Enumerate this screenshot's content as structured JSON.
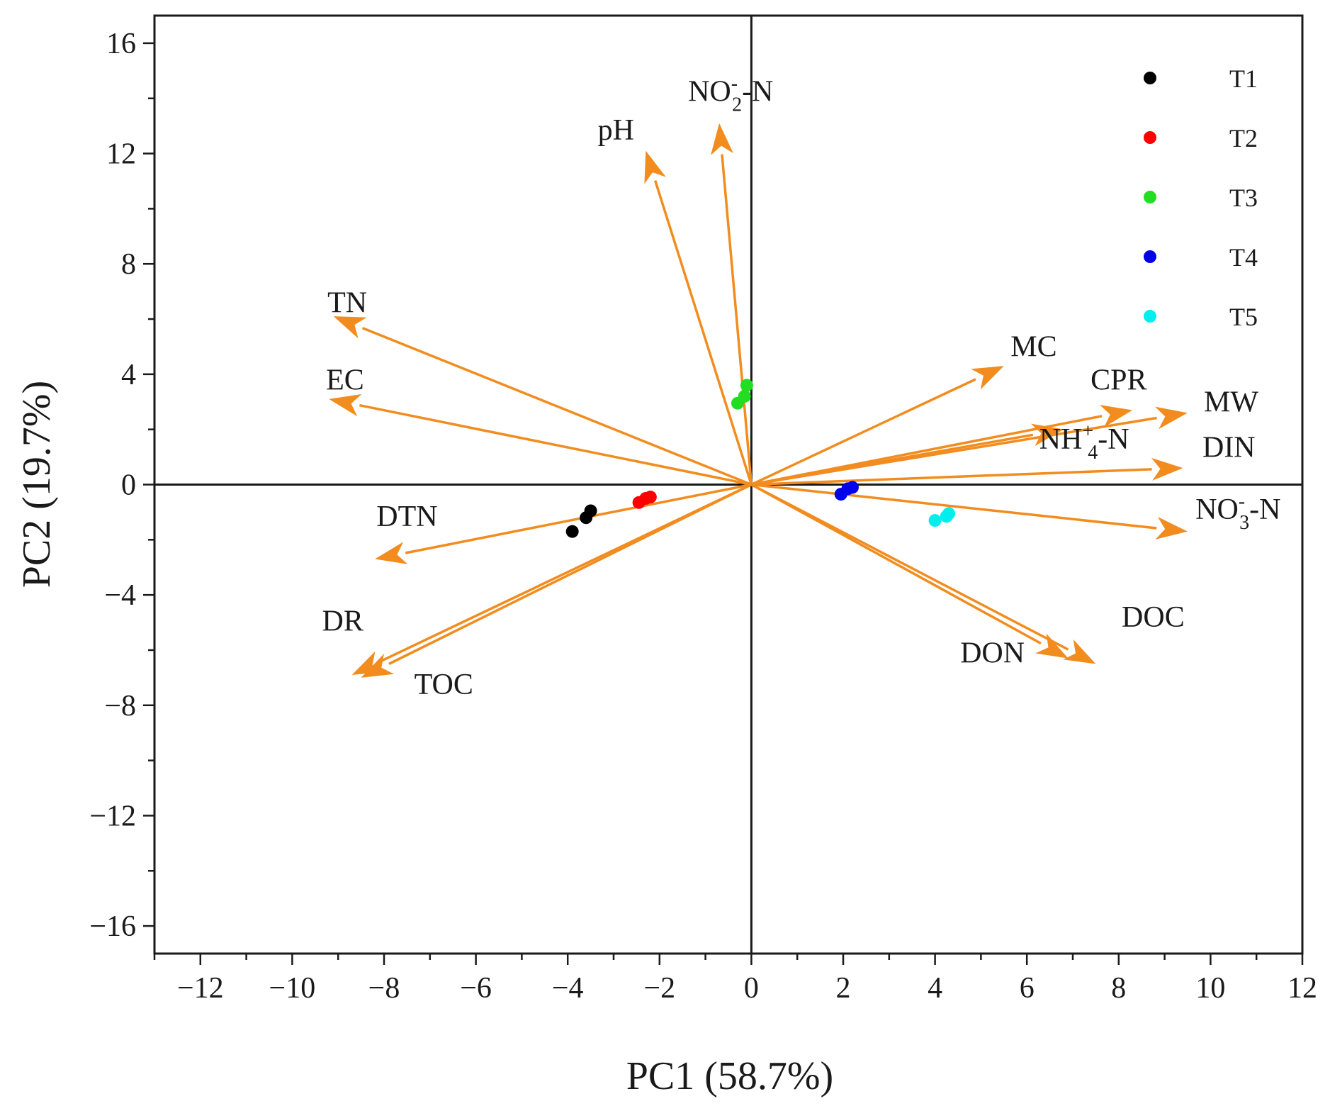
{
  "chart_data": {
    "type": "scatter",
    "subtype": "pca-biplot",
    "xlabel": "PC1 (58.7%)",
    "ylabel": "PC2 (19.7%)",
    "xlim": [
      -13,
      12
    ],
    "ylim": [
      -17,
      17
    ],
    "x_ticks": [
      -12,
      -10,
      -8,
      -6,
      -4,
      -2,
      0,
      2,
      4,
      6,
      8,
      10,
      12
    ],
    "x_tick_labels": [
      "−12",
      "−10",
      "−8",
      "−6",
      "−4",
      "−2",
      "0",
      "2",
      "4",
      "6",
      "8",
      "10",
      "12"
    ],
    "y_ticks": [
      16,
      12,
      8,
      4,
      0,
      -4,
      -8,
      -12,
      -16
    ],
    "y_tick_labels": [
      "16",
      "12",
      "8",
      "4",
      "0",
      "−4",
      "−8",
      "−12",
      "−16"
    ],
    "colors": {
      "arrow": "#F28C1E",
      "axis": "#1a1a1a",
      "T1": "#000000",
      "T2": "#FF0000",
      "T3": "#22DD22",
      "T4": "#0000EE",
      "T5": "#00EEEE"
    },
    "loadings": [
      {
        "name": "pH",
        "x": -2.3,
        "y": 12.1,
        "label": {
          "main": "pH"
        }
      },
      {
        "name": "NO2-N",
        "x": -0.7,
        "y": 13.1,
        "label": {
          "main": "NO",
          "sub": "2",
          "sup": "-",
          "suffix": "-N"
        }
      },
      {
        "name": "TN",
        "x": -9.1,
        "y": 6.1,
        "label": {
          "main": "TN"
        }
      },
      {
        "name": "EC",
        "x": -9.2,
        "y": 3.1,
        "label": {
          "main": "EC"
        }
      },
      {
        "name": "DTN",
        "x": -8.2,
        "y": -2.7,
        "label": {
          "main": "DTN"
        }
      },
      {
        "name": "DR",
        "x": -8.7,
        "y": -6.9,
        "label": {
          "main": "DR"
        }
      },
      {
        "name": "TOC",
        "x": -8.5,
        "y": -7.0,
        "label": {
          "main": "TOC"
        }
      },
      {
        "name": "MC",
        "x": 5.5,
        "y": 4.3,
        "label": {
          "main": "MC"
        }
      },
      {
        "name": "CPR",
        "x": 8.3,
        "y": 2.7,
        "label": {
          "main": "CPR"
        }
      },
      {
        "name": "MW",
        "x": 9.5,
        "y": 2.6,
        "label": {
          "main": "MW"
        }
      },
      {
        "name": "NH4-N",
        "x": 6.8,
        "y": 2.0,
        "label": {
          "main": "NH",
          "sub": "4",
          "sup": "+",
          "suffix": "-N"
        }
      },
      {
        "name": "DIN",
        "x": 9.4,
        "y": 0.6,
        "label": {
          "main": "DIN"
        }
      },
      {
        "name": "NO3-N",
        "x": 9.5,
        "y": -1.7,
        "label": {
          "main": "NO",
          "sub": "3",
          "sup": "-",
          "suffix": "-N"
        }
      },
      {
        "name": "DOC",
        "x": 7.5,
        "y": -6.5,
        "label": {
          "main": "DOC"
        }
      },
      {
        "name": "DON",
        "x": 6.9,
        "y": -6.3,
        "label": {
          "main": "DON"
        }
      }
    ],
    "series": [
      {
        "name": "T1",
        "points": [
          [
            -3.9,
            -1.7
          ],
          [
            -3.6,
            -1.2
          ],
          [
            -3.5,
            -0.95
          ]
        ]
      },
      {
        "name": "T2",
        "points": [
          [
            -2.45,
            -0.65
          ],
          [
            -2.3,
            -0.5
          ],
          [
            -2.2,
            -0.45
          ]
        ]
      },
      {
        "name": "T3",
        "points": [
          [
            -0.3,
            2.95
          ],
          [
            -0.15,
            3.2
          ],
          [
            -0.1,
            3.6
          ]
        ]
      },
      {
        "name": "T4",
        "points": [
          [
            1.95,
            -0.35
          ],
          [
            2.1,
            -0.15
          ],
          [
            2.2,
            -0.1
          ]
        ]
      },
      {
        "name": "T5",
        "points": [
          [
            4.0,
            -1.3
          ],
          [
            4.25,
            -1.15
          ],
          [
            4.3,
            -1.05
          ]
        ]
      }
    ],
    "legend": {
      "position": "top-right",
      "entries": [
        "T1",
        "T2",
        "T3",
        "T4",
        "T5"
      ]
    }
  }
}
